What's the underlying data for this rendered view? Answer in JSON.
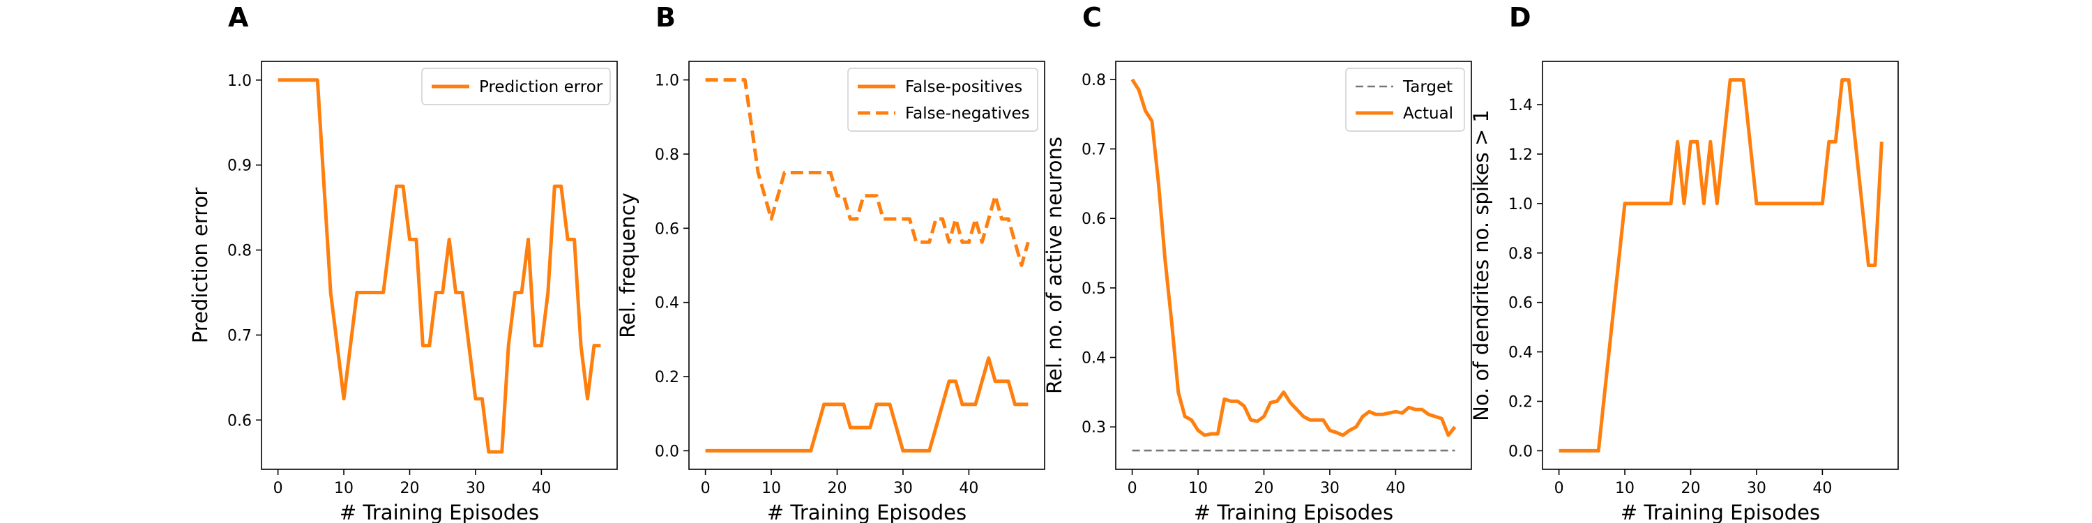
{
  "colors": {
    "accent": "#ff7f0e",
    "target": "#777777"
  },
  "chart_data": [
    {
      "letter": "A",
      "type": "line",
      "xlabel": "# Training Episodes",
      "ylabel": "Prediction error",
      "xlim": [
        -2.5,
        51.5
      ],
      "ylim": [
        0.542,
        1.022
      ],
      "xticks": [
        0,
        10,
        20,
        30,
        40
      ],
      "xtick_labels": [
        "0",
        "10",
        "20",
        "30",
        "40"
      ],
      "yticks": [
        0.6,
        0.7,
        0.8,
        0.9,
        1.0
      ],
      "ytick_labels": [
        "0.6",
        "0.7",
        "0.8",
        "0.9",
        "1.0"
      ],
      "legend_position": "top-right",
      "series": [
        {
          "name": "Prediction error",
          "style": "solid",
          "x": [
            0,
            1,
            2,
            3,
            4,
            5,
            6,
            7,
            8,
            9,
            10,
            11,
            12,
            13,
            14,
            15,
            16,
            17,
            18,
            19,
            20,
            21,
            22,
            23,
            24,
            25,
            26,
            27,
            28,
            29,
            30,
            31,
            32,
            33,
            34,
            35,
            36,
            37,
            38,
            39,
            40,
            41,
            42,
            43,
            44,
            45,
            46,
            47,
            48,
            49
          ],
          "y": [
            1.0,
            1.0,
            1.0,
            1.0,
            1.0,
            1.0,
            1.0,
            0.875,
            0.75,
            0.6875,
            0.625,
            0.6875,
            0.75,
            0.75,
            0.75,
            0.75,
            0.75,
            0.8125,
            0.875,
            0.875,
            0.8125,
            0.8125,
            0.6875,
            0.6875,
            0.75,
            0.75,
            0.8125,
            0.75,
            0.75,
            0.6875,
            0.625,
            0.625,
            0.5625,
            0.5625,
            0.5625,
            0.6875,
            0.75,
            0.75,
            0.8125,
            0.6875,
            0.6875,
            0.75,
            0.875,
            0.875,
            0.8125,
            0.8125,
            0.6875,
            0.625,
            0.6875,
            0.6875
          ]
        }
      ]
    },
    {
      "letter": "B",
      "type": "line",
      "xlabel": "# Training Episodes",
      "ylabel": "Rel. frequency",
      "xlim": [
        -2.5,
        51.5
      ],
      "ylim": [
        -0.05,
        1.05
      ],
      "xticks": [
        0,
        10,
        20,
        30,
        40
      ],
      "xtick_labels": [
        "0",
        "10",
        "20",
        "30",
        "40"
      ],
      "yticks": [
        0.0,
        0.2,
        0.4,
        0.6,
        0.8,
        1.0
      ],
      "ytick_labels": [
        "0.0",
        "0.2",
        "0.4",
        "0.6",
        "0.8",
        "1.0"
      ],
      "legend_position": "top-right",
      "series": [
        {
          "name": "False-positives",
          "style": "solid",
          "x": [
            0,
            1,
            2,
            3,
            4,
            5,
            6,
            7,
            8,
            9,
            10,
            11,
            12,
            13,
            14,
            15,
            16,
            17,
            18,
            19,
            20,
            21,
            22,
            23,
            24,
            25,
            26,
            27,
            28,
            29,
            30,
            31,
            32,
            33,
            34,
            35,
            36,
            37,
            38,
            39,
            40,
            41,
            42,
            43,
            44,
            45,
            46,
            47,
            48,
            49
          ],
          "y": [
            0,
            0,
            0,
            0,
            0,
            0,
            0,
            0,
            0,
            0,
            0,
            0,
            0,
            0,
            0,
            0,
            0,
            0.0625,
            0.125,
            0.125,
            0.125,
            0.125,
            0.0625,
            0.0625,
            0.0625,
            0.0625,
            0.125,
            0.125,
            0.125,
            0.0625,
            0,
            0,
            0,
            0,
            0,
            0.0625,
            0.125,
            0.1875,
            0.1875,
            0.125,
            0.125,
            0.125,
            0.1875,
            0.25,
            0.1875,
            0.1875,
            0.1875,
            0.125,
            0.125,
            0.125
          ]
        },
        {
          "name": "False-negatives",
          "style": "dashed",
          "x": [
            0,
            1,
            2,
            3,
            4,
            5,
            6,
            7,
            8,
            9,
            10,
            11,
            12,
            13,
            14,
            15,
            16,
            17,
            18,
            19,
            20,
            21,
            22,
            23,
            24,
            25,
            26,
            27,
            28,
            29,
            30,
            31,
            32,
            33,
            34,
            35,
            36,
            37,
            38,
            39,
            40,
            41,
            42,
            43,
            44,
            45,
            46,
            47,
            48,
            49
          ],
          "y": [
            1.0,
            1.0,
            1.0,
            1.0,
            1.0,
            1.0,
            1.0,
            0.875,
            0.75,
            0.6875,
            0.625,
            0.6875,
            0.75,
            0.75,
            0.75,
            0.75,
            0.75,
            0.75,
            0.75,
            0.75,
            0.6875,
            0.6875,
            0.625,
            0.625,
            0.6875,
            0.6875,
            0.6875,
            0.625,
            0.625,
            0.625,
            0.625,
            0.625,
            0.5625,
            0.5625,
            0.5625,
            0.625,
            0.625,
            0.5625,
            0.625,
            0.5625,
            0.5625,
            0.625,
            0.5625,
            0.625,
            0.6875,
            0.625,
            0.625,
            0.5625,
            0.5,
            0.5625
          ]
        }
      ]
    },
    {
      "letter": "C",
      "type": "line",
      "xlabel": "# Training Episodes",
      "ylabel": "Rel. no. of active neurons",
      "xlim": [
        -2.5,
        51.5
      ],
      "ylim": [
        0.239,
        0.826
      ],
      "xticks": [
        0,
        10,
        20,
        30,
        40
      ],
      "xtick_labels": [
        "0",
        "10",
        "20",
        "30",
        "40"
      ],
      "yticks": [
        0.3,
        0.4,
        0.5,
        0.6,
        0.7,
        0.8
      ],
      "ytick_labels": [
        "0.3",
        "0.4",
        "0.5",
        "0.6",
        "0.7",
        "0.8"
      ],
      "legend_position": "top-right",
      "series": [
        {
          "name": "Target",
          "style": "dashed-thin",
          "x": [
            0,
            49
          ],
          "y": [
            0.266,
            0.266
          ]
        },
        {
          "name": "Actual",
          "style": "solid",
          "x": [
            0,
            1,
            2,
            3,
            4,
            5,
            6,
            7,
            8,
            9,
            10,
            11,
            12,
            13,
            14,
            15,
            16,
            17,
            18,
            19,
            20,
            21,
            22,
            23,
            24,
            25,
            26,
            27,
            28,
            29,
            30,
            31,
            32,
            33,
            34,
            35,
            36,
            37,
            38,
            39,
            40,
            41,
            42,
            43,
            44,
            45,
            46,
            47,
            48,
            49
          ],
          "y": [
            0.8,
            0.785,
            0.755,
            0.74,
            0.65,
            0.54,
            0.45,
            0.35,
            0.315,
            0.31,
            0.295,
            0.288,
            0.29,
            0.29,
            0.34,
            0.337,
            0.337,
            0.33,
            0.31,
            0.308,
            0.315,
            0.335,
            0.337,
            0.35,
            0.335,
            0.325,
            0.315,
            0.31,
            0.31,
            0.31,
            0.295,
            0.292,
            0.288,
            0.295,
            0.3,
            0.315,
            0.322,
            0.318,
            0.318,
            0.32,
            0.322,
            0.32,
            0.328,
            0.325,
            0.325,
            0.318,
            0.315,
            0.312,
            0.288,
            0.3
          ]
        }
      ]
    },
    {
      "letter": "D",
      "type": "line",
      "xlabel": "# Training Episodes",
      "ylabel": "No. of dendrites no. spikes > 1",
      "xlim": [
        -2.5,
        51.5
      ],
      "ylim": [
        -0.075,
        1.575
      ],
      "xticks": [
        0,
        10,
        20,
        30,
        40
      ],
      "xtick_labels": [
        "0",
        "10",
        "20",
        "30",
        "40"
      ],
      "yticks": [
        0.0,
        0.2,
        0.4,
        0.6,
        0.8,
        1.0,
        1.2,
        1.4
      ],
      "ytick_labels": [
        "0.0",
        "0.2",
        "0.4",
        "0.6",
        "0.8",
        "1.0",
        "1.2",
        "1.4"
      ],
      "legend_position": "",
      "series": [
        {
          "name": "",
          "style": "solid",
          "x": [
            0,
            1,
            2,
            3,
            4,
            5,
            6,
            7,
            8,
            9,
            10,
            11,
            12,
            13,
            14,
            15,
            16,
            17,
            18,
            19,
            20,
            21,
            22,
            23,
            24,
            25,
            26,
            27,
            28,
            29,
            30,
            31,
            32,
            33,
            34,
            35,
            36,
            37,
            38,
            39,
            40,
            41,
            42,
            43,
            44,
            45,
            46,
            47,
            48,
            49
          ],
          "y": [
            0,
            0,
            0,
            0,
            0,
            0,
            0,
            0.25,
            0.5,
            0.75,
            1.0,
            1.0,
            1.0,
            1.0,
            1.0,
            1.0,
            1.0,
            1.0,
            1.25,
            1.0,
            1.25,
            1.25,
            1.0,
            1.25,
            1.0,
            1.25,
            1.5,
            1.5,
            1.5,
            1.25,
            1.0,
            1.0,
            1.0,
            1.0,
            1.0,
            1.0,
            1.0,
            1.0,
            1.0,
            1.0,
            1.0,
            1.25,
            1.25,
            1.5,
            1.5,
            1.25,
            1.0,
            0.75,
            0.75,
            1.25
          ]
        }
      ]
    }
  ]
}
